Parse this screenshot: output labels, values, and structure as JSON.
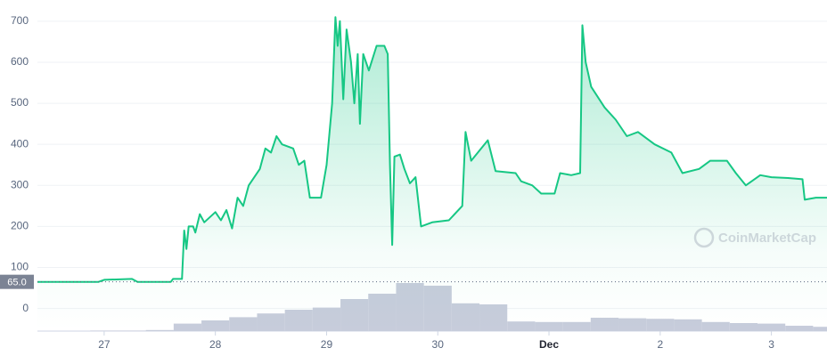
{
  "chart_data": {
    "type": "line",
    "xlim": [
      26.4,
      33.5
    ],
    "xticks": [
      27,
      28,
      29,
      30,
      {
        "value": 31,
        "label": "Dec"
      },
      {
        "value": 32,
        "label": "2"
      },
      {
        "value": 33,
        "label": "3"
      }
    ],
    "ylim": [
      -55,
      730
    ],
    "yticks": [
      0,
      100,
      200,
      300,
      400,
      500,
      600,
      700
    ],
    "y2lim": [
      0,
      100
    ],
    "grid": true,
    "reference_line": {
      "value": 65,
      "label": "65.0"
    },
    "watermark": "CoinMarketCap",
    "series": [
      {
        "color": "#16c784",
        "x": [
          26.4,
          26.95,
          27.0,
          27.25,
          27.3,
          27.6,
          27.62,
          27.7,
          27.72,
          27.74,
          27.76,
          27.8,
          27.82,
          27.86,
          27.9,
          28.0,
          28.05,
          28.1,
          28.15,
          28.2,
          28.25,
          28.3,
          28.4,
          28.45,
          28.5,
          28.55,
          28.6,
          28.7,
          28.75,
          28.8,
          28.85,
          28.95,
          29.0,
          29.05,
          29.08,
          29.1,
          29.12,
          29.15,
          29.18,
          29.22,
          29.25,
          29.28,
          29.3,
          29.33,
          29.38,
          29.45,
          29.52,
          29.55,
          29.57,
          29.59,
          29.61,
          29.66,
          29.7,
          29.75,
          29.8,
          29.85,
          29.95,
          30.1,
          30.22,
          30.25,
          30.3,
          30.45,
          30.52,
          30.7,
          30.75,
          30.85,
          30.93,
          31.05,
          31.1,
          31.2,
          31.28,
          31.3,
          31.33,
          31.38,
          31.5,
          31.6,
          31.7,
          31.8,
          31.95,
          32.1,
          32.2,
          32.35,
          32.45,
          32.6,
          32.68,
          32.77,
          32.9,
          33.0,
          33.15,
          33.28,
          33.3,
          33.4,
          33.5
        ],
        "values": [
          65,
          65,
          70,
          72,
          65,
          65,
          72,
          72,
          190,
          145,
          200,
          200,
          185,
          230,
          210,
          235,
          215,
          240,
          195,
          270,
          250,
          300,
          340,
          390,
          380,
          420,
          400,
          390,
          350,
          360,
          270,
          270,
          350,
          500,
          710,
          640,
          700,
          510,
          680,
          600,
          500,
          620,
          450,
          620,
          580,
          640,
          640,
          620,
          350,
          155,
          370,
          375,
          340,
          305,
          320,
          200,
          210,
          215,
          250,
          430,
          360,
          410,
          335,
          330,
          310,
          300,
          280,
          280,
          330,
          325,
          330,
          690,
          600,
          540,
          490,
          460,
          420,
          430,
          400,
          380,
          330,
          340,
          360,
          360,
          330,
          300,
          325,
          320,
          318,
          315,
          265,
          270,
          270
        ]
      },
      {
        "type": "bar",
        "axis": "y2",
        "color": "#c7ccdb",
        "x": [
          26.5,
          26.75,
          27.0,
          27.25,
          27.5,
          27.75,
          28.0,
          28.25,
          28.5,
          28.75,
          29.0,
          29.25,
          29.5,
          29.75,
          30.0,
          30.25,
          30.5,
          30.75,
          31.0,
          31.25,
          31.5,
          31.75,
          32.0,
          32.25,
          32.5,
          32.75,
          33.0,
          33.25,
          33.5
        ],
        "values": [
          0,
          0,
          1,
          1,
          2,
          14,
          20,
          26,
          33,
          40,
          44,
          60,
          70,
          90,
          85,
          52,
          50,
          18,
          17,
          17,
          25,
          24,
          23,
          22,
          17,
          15,
          14,
          10,
          8
        ]
      }
    ]
  }
}
